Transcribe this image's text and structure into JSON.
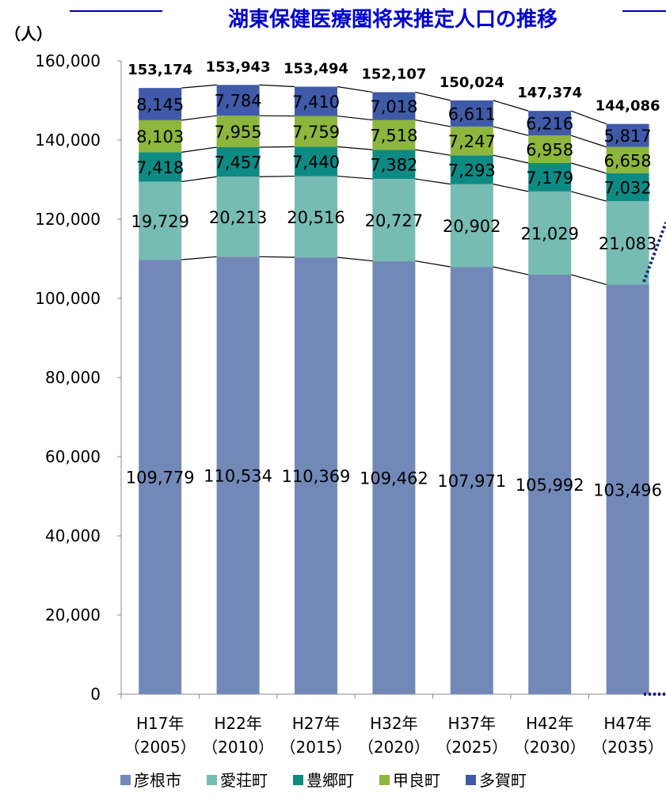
{
  "chart_data": {
    "type": "bar",
    "stacked": true,
    "title": "湖東保健医療圏将来推定人口の推移",
    "ylabel": "（人）",
    "ylim": [
      0,
      160000
    ],
    "yticks": [
      "0",
      "20,000",
      "40,000",
      "60,000",
      "80,000",
      "100,000",
      "120,000",
      "140,000",
      "160,000"
    ],
    "categories": [
      "H17年",
      "H22年",
      "H27年",
      "H32年",
      "H37年",
      "H42年",
      "H47年"
    ],
    "category_years": [
      "（2005）",
      "（2010）",
      "（2015）",
      "（2020）",
      "（2025）",
      "（2030）",
      "（2035）"
    ],
    "series": [
      {
        "name": "彦根市",
        "color": "#7289b8",
        "values": [
          109779,
          110534,
          110369,
          109462,
          107971,
          105992,
          103496
        ],
        "labels": [
          "109,779",
          "110,534",
          "110,369",
          "109,462",
          "107,971",
          "105,992",
          "103,496"
        ]
      },
      {
        "name": "愛荘町",
        "color": "#77bcb3",
        "values": [
          19729,
          20213,
          20516,
          20727,
          20902,
          21029,
          21083
        ],
        "labels": [
          "19,729",
          "20,213",
          "20,516",
          "20,727",
          "20,902",
          "21,029",
          "21,083"
        ]
      },
      {
        "name": "豊郷町",
        "color": "#0e8a84",
        "values": [
          7418,
          7457,
          7440,
          7382,
          7293,
          7179,
          7032
        ],
        "labels": [
          "7,418",
          "7,457",
          "7,440",
          "7,382",
          "7,293",
          "7,179",
          "7,032"
        ]
      },
      {
        "name": "甲良町",
        "color": "#8db63c",
        "values": [
          8103,
          7955,
          7759,
          7518,
          7247,
          6958,
          6658
        ],
        "labels": [
          "8,103",
          "7,955",
          "7,759",
          "7,518",
          "7,247",
          "6,958",
          "6,658"
        ]
      },
      {
        "name": "多賀町",
        "color": "#3f5aa8",
        "values": [
          8145,
          7784,
          7410,
          7018,
          6611,
          6216,
          5817
        ],
        "labels": [
          "8,145",
          "7,784",
          "7,410",
          "7,018",
          "6,611",
          "6,216",
          "5,817"
        ]
      }
    ],
    "totals": [
      153174,
      153943,
      153494,
      152107,
      150024,
      147374,
      144086
    ],
    "total_labels": [
      "153,174",
      "153,943",
      "153,494",
      "152,107",
      "150,024",
      "147,374",
      "144,086"
    ],
    "legend_position": "bottom",
    "grid": false
  }
}
